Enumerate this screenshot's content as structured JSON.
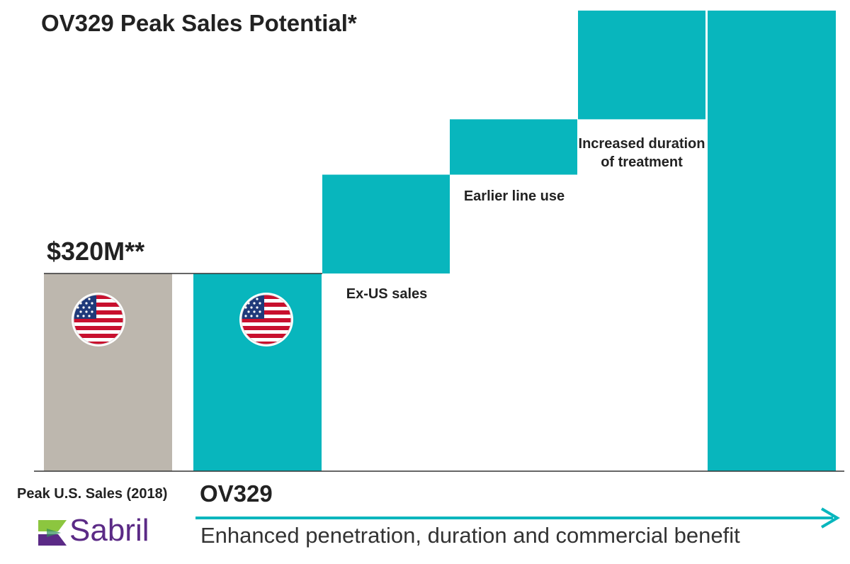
{
  "title": "OV329 Peak Sales Potential*",
  "value_label": "$320M**",
  "colors": {
    "baseline_bar": "#bdb7ae",
    "growth_bar": "#08b6bd",
    "axis": "#333333",
    "logo_text": "#5b2a86",
    "logo_mark_green": "#8cc63f",
    "logo_mark_purple": "#5b2a86"
  },
  "flag_icon": "us-flag-icon",
  "logo": {
    "icon": "sabril-logo-mark-icon",
    "text": "Sabril"
  },
  "categories": {
    "baseline_label": "Peak U.S. Sales (2018)",
    "product_label": "OV329"
  },
  "arrow_caption": "Enhanced penetration, duration and commercial benefit",
  "chart_data": {
    "type": "waterfall",
    "title": "OV329 Peak Sales Potential*",
    "baseline_value_label": "$320M**",
    "bars": [
      {
        "label": "Peak U.S. Sales (2018)",
        "kind": "baseline",
        "start": 0,
        "end": 1.0,
        "flag": true
      },
      {
        "label": "OV329",
        "kind": "baseline",
        "start": 0,
        "end": 1.0,
        "flag": true
      },
      {
        "label": "Ex-US sales",
        "kind": "increment",
        "start": 1.0,
        "end": 1.5
      },
      {
        "label": "Earlier line use",
        "kind": "increment",
        "start": 1.5,
        "end": 1.78
      },
      {
        "label": "Increased duration of treatment",
        "kind": "increment",
        "start": 1.78,
        "end": 2.33
      },
      {
        "label": "",
        "kind": "total",
        "start": 0,
        "end": 2.33
      }
    ],
    "value_units": "multiple of $320M (estimated, unlabeled axis)",
    "ylim": [
      0,
      2.33
    ],
    "axis_label_text": "",
    "grid": false,
    "legend": "none"
  }
}
